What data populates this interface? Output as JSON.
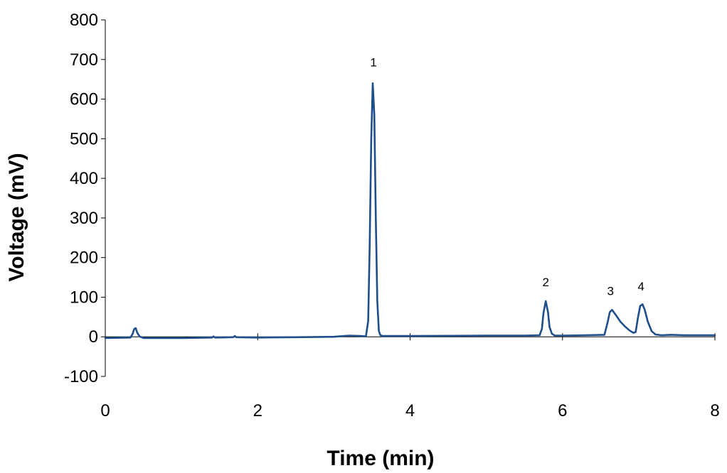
{
  "chart_data": {
    "type": "line",
    "title": "",
    "xlabel": "Time (min)",
    "ylabel": "Voltage (mV)",
    "xlim": [
      0,
      8
    ],
    "ylim": [
      -100,
      800
    ],
    "x_ticks": [
      0,
      2,
      4,
      6,
      8
    ],
    "y_ticks": [
      -100,
      0,
      100,
      200,
      300,
      400,
      500,
      600,
      700,
      800
    ],
    "grid": false,
    "legend": "none",
    "series": [
      {
        "color": "#1f4e8c",
        "x": [
          0,
          0.33,
          0.36,
          0.38,
          0.4,
          0.42,
          0.45,
          0.5,
          1.0,
          1.4,
          1.42,
          1.44,
          1.68,
          1.7,
          1.72,
          2.0,
          2.5,
          3.0,
          3.2,
          3.35,
          3.42,
          3.45,
          3.47,
          3.49,
          3.51,
          3.53,
          3.55,
          3.57,
          3.59,
          3.61,
          3.64,
          3.7,
          4.0,
          5.0,
          5.5,
          5.7,
          5.73,
          5.75,
          5.78,
          5.81,
          5.83,
          5.86,
          5.9,
          6.0,
          6.3,
          6.55,
          6.59,
          6.62,
          6.65,
          6.7,
          6.76,
          6.82,
          6.88,
          6.93,
          6.96,
          6.99,
          7.02,
          7.05,
          7.08,
          7.12,
          7.17,
          7.22,
          7.3,
          7.42,
          7.6,
          8.0
        ],
        "y": [
          -3,
          -2,
          8,
          20,
          22,
          10,
          1,
          -3,
          -3,
          -2,
          1,
          -2,
          -1,
          2,
          -1,
          -2,
          -1,
          0,
          3,
          2,
          1,
          40,
          230,
          500,
          640,
          560,
          300,
          90,
          15,
          4,
          2,
          2,
          2,
          3,
          3,
          4,
          20,
          60,
          90,
          62,
          25,
          8,
          3,
          3,
          4,
          5,
          35,
          62,
          68,
          55,
          38,
          26,
          16,
          10,
          12,
          48,
          78,
          82,
          68,
          38,
          14,
          6,
          4,
          5,
          4,
          4
        ]
      }
    ],
    "annotations": [
      {
        "text": "1",
        "x": 3.52,
        "y": 683
      },
      {
        "text": "2",
        "x": 5.78,
        "y": 128
      },
      {
        "text": "3",
        "x": 6.63,
        "y": 105
      },
      {
        "text": "4",
        "x": 7.03,
        "y": 117
      }
    ]
  }
}
